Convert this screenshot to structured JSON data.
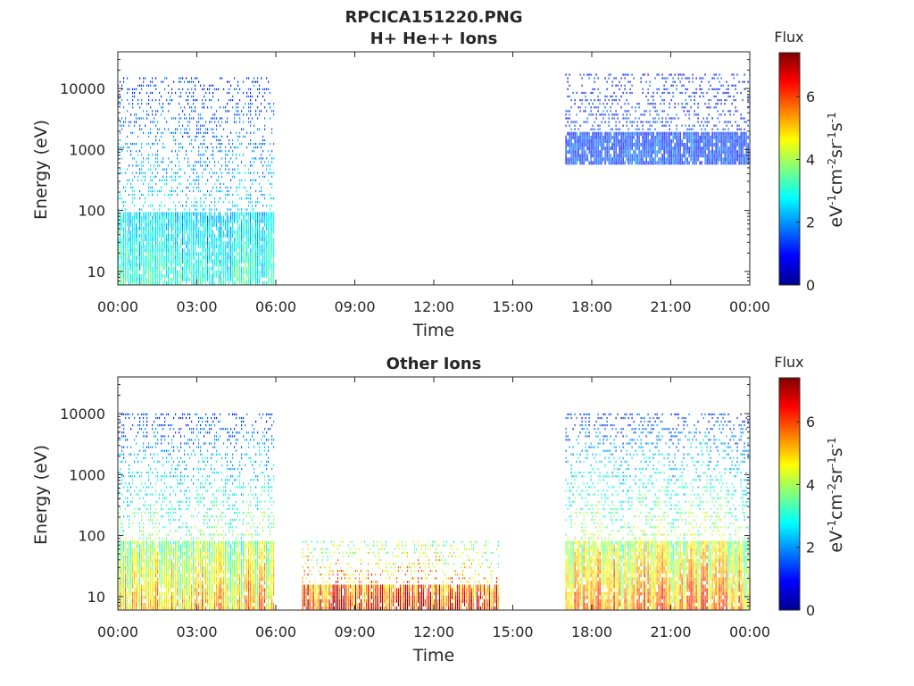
{
  "figure": {
    "title": "RPCICA151220.PNG",
    "panels": [
      {
        "title": "H+ He++ Ions",
        "xlabel": "Time",
        "ylabel": "Energy (eV)",
        "colorbar_title": "Flux",
        "colorbar_label": "eV-1cm-2sr-1s-1"
      },
      {
        "title": "Other Ions",
        "xlabel": "Time",
        "ylabel": "Energy (eV)",
        "colorbar_title": "Flux",
        "colorbar_label": "eV-1cm-2sr-1s-1"
      }
    ]
  },
  "chart_data": [
    {
      "type": "heatmap",
      "title": "H+ He++ Ions",
      "xlabel": "Time",
      "ylabel": "Energy (eV)",
      "x_ticks": [
        "00:00",
        "03:00",
        "06:00",
        "09:00",
        "12:00",
        "15:00",
        "18:00",
        "21:00",
        "00:00"
      ],
      "xlim_hours": [
        0,
        24
      ],
      "y_scale": "log",
      "y_ticks": [
        10,
        100,
        1000,
        10000
      ],
      "y_tick_labels": [
        "10",
        "100",
        "1000",
        "10000"
      ],
      "ylim": [
        6,
        40000
      ],
      "colorbar": {
        "label": "Flux",
        "units": "eV-1cm-2sr-1s-1",
        "range": [
          0,
          7.4
        ],
        "ticks": [
          0,
          2,
          4,
          6
        ],
        "colormap": "jet"
      },
      "data_blocks": [
        {
          "t_start": 0.0,
          "t_end": 5.9,
          "e_min": 6,
          "e_max": 15000,
          "flux_low_energy": 3.0,
          "flux_high_energy": 1.2
        },
        {
          "t_start": 17.0,
          "t_end": 24.0,
          "e_min": 500,
          "e_max": 17000,
          "flux_low_energy": 1.5,
          "flux_high_energy": 1.2
        }
      ],
      "grid": false
    },
    {
      "type": "heatmap",
      "title": "Other Ions",
      "xlabel": "Time",
      "ylabel": "Energy (eV)",
      "x_ticks": [
        "00:00",
        "03:00",
        "06:00",
        "09:00",
        "12:00",
        "15:00",
        "18:00",
        "21:00",
        "00:00"
      ],
      "xlim_hours": [
        0,
        24
      ],
      "y_scale": "log",
      "y_ticks": [
        10,
        100,
        1000,
        10000
      ],
      "y_tick_labels": [
        "10",
        "100",
        "1000",
        "10000"
      ],
      "ylim": [
        6,
        40000
      ],
      "colorbar": {
        "label": "Flux",
        "units": "eV-1cm-2sr-1s-1",
        "range": [
          0,
          7.4
        ],
        "ticks": [
          0,
          2,
          4,
          6
        ],
        "colormap": "jet"
      },
      "data_blocks": [
        {
          "t_start": 0.0,
          "t_end": 5.9,
          "e_min": 6,
          "e_max": 10000,
          "flux_low_energy": 5.0,
          "flux_high_energy": 1.3
        },
        {
          "t_start": 7.0,
          "t_end": 8.2,
          "e_min": 6,
          "e_max": 80,
          "flux_low_energy": 6.8,
          "flux_high_energy": 3.5
        },
        {
          "t_start": 8.2,
          "t_end": 14.5,
          "e_min": 6,
          "e_max": 80,
          "flux_low_energy": 6.6,
          "flux_high_energy": 3.5
        },
        {
          "t_start": 17.0,
          "t_end": 24.0,
          "e_min": 6,
          "e_max": 10000,
          "flux_low_energy": 5.5,
          "flux_high_energy": 1.3
        }
      ],
      "grid": false
    }
  ]
}
